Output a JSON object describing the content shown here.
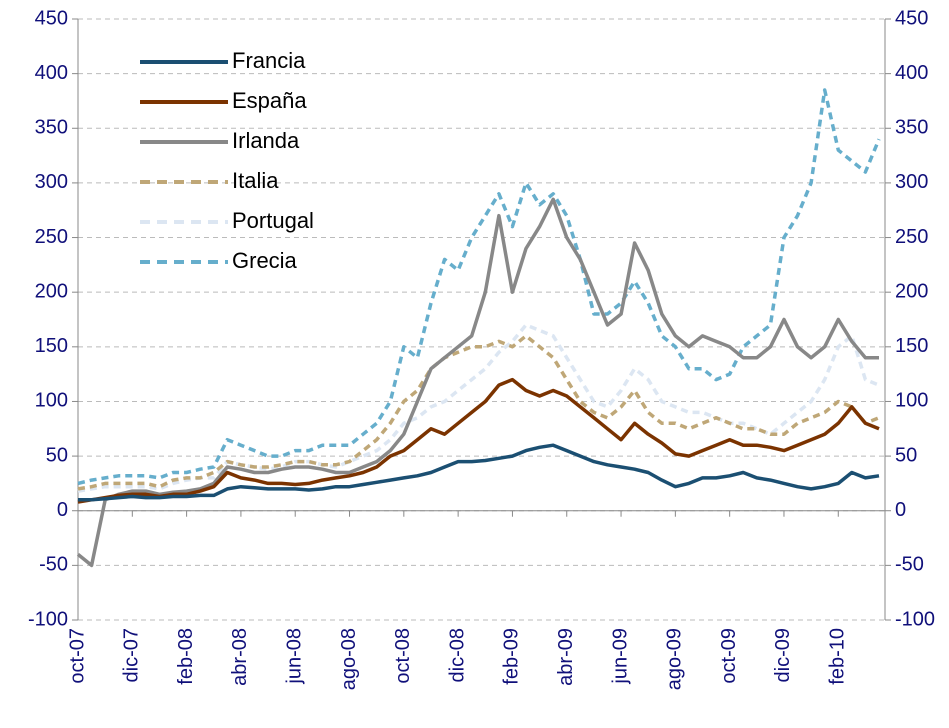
{
  "chart_data": {
    "type": "line",
    "categories": [
      "oct-07",
      null,
      null,
      null,
      "dic-07",
      null,
      null,
      null,
      "feb-08",
      null,
      null,
      null,
      "abr-08",
      null,
      null,
      null,
      "jun-08",
      null,
      null,
      null,
      "ago-08",
      null,
      null,
      null,
      "oct-08",
      null,
      null,
      null,
      "dic-08",
      null,
      null,
      null,
      "feb-09",
      null,
      null,
      null,
      "abr-09",
      null,
      null,
      null,
      "jun-09",
      null,
      null,
      null,
      "ago-09",
      null,
      null,
      null,
      "oct-09",
      null,
      null,
      null,
      "dic-09",
      null,
      null,
      null,
      "feb-10",
      null,
      null,
      null
    ],
    "series": [
      {
        "name": "Francia",
        "color": "#1b4f72",
        "dash": false,
        "values": [
          10,
          10,
          11,
          12,
          13,
          12,
          12,
          13,
          13,
          14,
          14,
          20,
          22,
          21,
          20,
          20,
          20,
          19,
          20,
          22,
          22,
          24,
          26,
          28,
          30,
          32,
          35,
          40,
          45,
          45,
          46,
          48,
          50,
          55,
          58,
          60,
          55,
          50,
          45,
          42,
          40,
          38,
          35,
          28,
          22,
          25,
          30,
          30,
          32,
          35,
          30,
          28,
          25,
          22,
          20,
          22,
          25,
          35,
          30,
          32
        ]
      },
      {
        "name": "España",
        "color": "#7b3300",
        "dash": false,
        "values": [
          8,
          10,
          12,
          14,
          15,
          15,
          13,
          15,
          15,
          18,
          22,
          35,
          30,
          28,
          25,
          25,
          24,
          25,
          28,
          30,
          32,
          35,
          40,
          50,
          55,
          65,
          75,
          70,
          80,
          90,
          100,
          115,
          120,
          110,
          105,
          110,
          105,
          95,
          85,
          75,
          65,
          80,
          70,
          62,
          52,
          50,
          55,
          60,
          65,
          60,
          60,
          58,
          55,
          60,
          65,
          70,
          80,
          95,
          80,
          75
        ]
      },
      {
        "name": "Irlanda",
        "color": "#888888",
        "dash": false,
        "values": [
          -40,
          -50,
          10,
          15,
          18,
          18,
          15,
          17,
          18,
          20,
          25,
          40,
          38,
          35,
          35,
          38,
          40,
          40,
          38,
          35,
          35,
          40,
          45,
          55,
          70,
          100,
          130,
          140,
          150,
          160,
          200,
          270,
          200,
          240,
          260,
          285,
          250,
          230,
          200,
          170,
          180,
          245,
          220,
          180,
          160,
          150,
          160,
          155,
          150,
          140,
          140,
          150,
          175,
          150,
          140,
          150,
          175,
          155,
          140,
          140
        ]
      },
      {
        "name": "Italia",
        "color": "#bfa777",
        "dash": true,
        "values": [
          20,
          22,
          25,
          25,
          25,
          25,
          22,
          28,
          30,
          30,
          35,
          45,
          42,
          40,
          40,
          42,
          45,
          45,
          42,
          42,
          45,
          55,
          65,
          80,
          100,
          110,
          130,
          140,
          145,
          150,
          150,
          155,
          150,
          160,
          150,
          140,
          120,
          100,
          90,
          85,
          95,
          110,
          90,
          80,
          80,
          75,
          80,
          85,
          80,
          75,
          75,
          70,
          70,
          80,
          85,
          90,
          100,
          95,
          80,
          85
        ]
      },
      {
        "name": "Portugal",
        "color": "#dce6f2",
        "dash": true,
        "values": [
          18,
          20,
          22,
          22,
          22,
          22,
          20,
          25,
          28,
          30,
          30,
          45,
          42,
          40,
          38,
          40,
          45,
          45,
          42,
          40,
          45,
          50,
          55,
          65,
          80,
          85,
          95,
          100,
          110,
          120,
          130,
          145,
          155,
          170,
          165,
          160,
          140,
          120,
          100,
          95,
          110,
          130,
          120,
          100,
          95,
          90,
          90,
          85,
          80,
          80,
          75,
          70,
          80,
          90,
          100,
          120,
          150,
          160,
          120,
          115
        ]
      },
      {
        "name": "Grecia",
        "color": "#66aecc",
        "dash": true,
        "values": [
          25,
          28,
          30,
          32,
          32,
          32,
          30,
          35,
          35,
          38,
          40,
          65,
          60,
          55,
          50,
          50,
          55,
          55,
          60,
          60,
          60,
          70,
          80,
          100,
          150,
          140,
          190,
          230,
          220,
          250,
          270,
          290,
          260,
          300,
          280,
          290,
          270,
          230,
          180,
          180,
          190,
          210,
          190,
          160,
          150,
          130,
          130,
          120,
          125,
          150,
          160,
          170,
          250,
          270,
          300,
          385,
          330,
          320,
          310,
          340
        ]
      }
    ],
    "ylim": [
      -100,
      450
    ],
    "yticks": [
      -100,
      -50,
      0,
      50,
      100,
      150,
      200,
      250,
      300,
      350,
      400,
      450
    ],
    "y2lim": [
      -100,
      450
    ],
    "y2ticks": [
      -100,
      -50,
      0,
      50,
      100,
      150,
      200,
      250,
      300,
      350,
      400,
      450
    ],
    "grid": true,
    "legend": "upper left"
  }
}
